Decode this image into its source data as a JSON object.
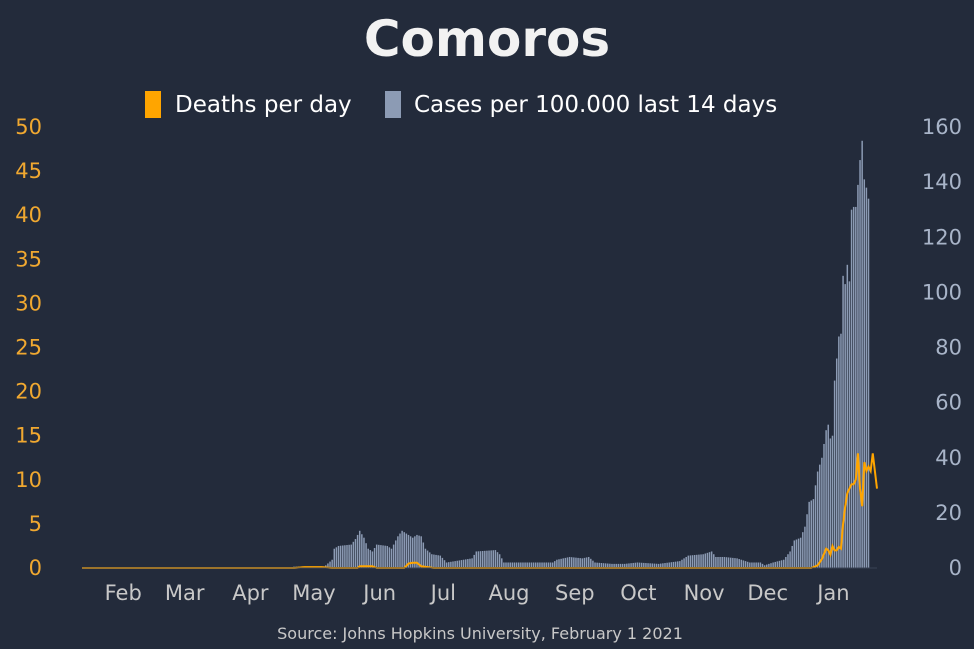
{
  "chart_data": {
    "type": "bar",
    "title": "Comoros",
    "source": "Source: Johns Hopkins University, February 1 2021",
    "legend_position": "top",
    "colors": {
      "background": "#232b3b",
      "deaths": "#ffa500",
      "cases": "#8c9bb4",
      "left_axis": "#f0a830",
      "right_axis": "#a8b4c8",
      "x_axis": "#c8c8c8"
    },
    "x_range": [
      "2020-01-22",
      "2021-01-31"
    ],
    "x_ticks": [
      {
        "label": "Feb",
        "date": "2020-02-01"
      },
      {
        "label": "Mar",
        "date": "2020-03-01"
      },
      {
        "label": "Apr",
        "date": "2020-04-01"
      },
      {
        "label": "May",
        "date": "2020-05-01"
      },
      {
        "label": "Jun",
        "date": "2020-06-01"
      },
      {
        "label": "Jul",
        "date": "2020-07-01"
      },
      {
        "label": "Aug",
        "date": "2020-08-01"
      },
      {
        "label": "Sep",
        "date": "2020-09-01"
      },
      {
        "label": "Oct",
        "date": "2020-10-01"
      },
      {
        "label": "Nov",
        "date": "2020-11-01"
      },
      {
        "label": "Dec",
        "date": "2020-12-01"
      },
      {
        "label": "Jan",
        "date": "2021-01-01"
      }
    ],
    "y_left": {
      "ticks": [
        0,
        5,
        10,
        15,
        20,
        25,
        30,
        35,
        40,
        45,
        50
      ],
      "range": [
        0,
        50
      ]
    },
    "y_right": {
      "ticks": [
        0,
        20,
        40,
        60,
        80,
        100,
        120,
        140,
        160
      ],
      "range": [
        0,
        160
      ]
    },
    "series": [
      {
        "name": "Deaths per day",
        "kind": "line",
        "axis": "left",
        "points": [
          [
            "2020-01-22",
            0
          ],
          [
            "2020-05-01",
            0
          ],
          [
            "2020-05-06",
            0.1
          ],
          [
            "2020-05-14",
            0.1
          ],
          [
            "2020-05-19",
            0
          ],
          [
            "2020-05-31",
            0
          ],
          [
            "2020-06-01",
            0.2
          ],
          [
            "2020-06-07",
            0.2
          ],
          [
            "2020-06-09",
            0
          ],
          [
            "2020-06-22",
            0
          ],
          [
            "2020-06-24",
            0.5
          ],
          [
            "2020-06-26",
            0.6
          ],
          [
            "2020-06-28",
            0.6
          ],
          [
            "2020-06-30",
            0.2
          ],
          [
            "2020-07-03",
            0.1
          ],
          [
            "2020-07-06",
            0
          ],
          [
            "2020-12-31",
            0
          ],
          [
            "2021-01-03",
            0.3
          ],
          [
            "2021-01-05",
            1.0
          ],
          [
            "2021-01-07",
            2.2
          ],
          [
            "2021-01-08",
            2.0
          ],
          [
            "2021-01-09",
            1.5
          ],
          [
            "2021-01-10",
            2.5
          ],
          [
            "2021-01-11",
            2.0
          ],
          [
            "2021-01-12",
            2.0
          ],
          [
            "2021-01-13",
            2.4
          ],
          [
            "2021-01-14",
            2.2
          ],
          [
            "2021-01-15",
            5.0
          ],
          [
            "2021-01-16",
            7.0
          ],
          [
            "2021-01-17",
            8.5
          ],
          [
            "2021-01-18",
            9.0
          ],
          [
            "2021-01-19",
            9.5
          ],
          [
            "2021-01-20",
            9.5
          ],
          [
            "2021-01-21",
            10.0
          ],
          [
            "2021-01-22",
            13.0
          ],
          [
            "2021-01-23",
            9.0
          ],
          [
            "2021-01-24",
            7.0
          ],
          [
            "2021-01-25",
            12.0
          ],
          [
            "2021-01-26",
            11.0
          ],
          [
            "2021-01-27",
            11.5
          ],
          [
            "2021-01-28",
            11.0
          ],
          [
            "2021-01-29",
            13.0
          ],
          [
            "2021-01-30",
            11.0
          ],
          [
            "2021-01-31",
            9.0
          ]
        ]
      },
      {
        "name": "Cases per 100.000 last 14 days",
        "kind": "bar",
        "axis": "right",
        "points": [
          [
            "2020-01-22",
            0
          ],
          [
            "2020-04-30",
            0
          ],
          [
            "2020-05-01",
            0.5
          ],
          [
            "2020-05-10",
            0.5
          ],
          [
            "2020-05-15",
            0.3
          ],
          [
            "2020-05-19",
            3
          ],
          [
            "2020-05-20",
            7
          ],
          [
            "2020-05-22",
            8
          ],
          [
            "2020-05-28",
            8.5
          ],
          [
            "2020-05-30",
            10.5
          ],
          [
            "2020-06-01",
            13.5
          ],
          [
            "2020-06-03",
            11
          ],
          [
            "2020-06-05",
            7
          ],
          [
            "2020-06-07",
            6
          ],
          [
            "2020-06-09",
            8.5
          ],
          [
            "2020-06-14",
            8
          ],
          [
            "2020-06-16",
            7
          ],
          [
            "2020-06-19",
            11.5
          ],
          [
            "2020-06-21",
            13.5
          ],
          [
            "2020-06-23",
            12.5
          ],
          [
            "2020-06-26",
            11
          ],
          [
            "2020-06-28",
            12
          ],
          [
            "2020-06-30",
            11.5
          ],
          [
            "2020-07-02",
            7
          ],
          [
            "2020-07-05",
            5
          ],
          [
            "2020-07-09",
            4.5
          ],
          [
            "2020-07-12",
            2
          ],
          [
            "2020-07-16",
            2.5
          ],
          [
            "2020-07-24",
            3.5
          ],
          [
            "2020-07-26",
            6
          ],
          [
            "2020-08-04",
            6.5
          ],
          [
            "2020-08-06",
            5
          ],
          [
            "2020-08-08",
            2
          ],
          [
            "2020-08-20",
            2
          ],
          [
            "2020-08-31",
            2
          ],
          [
            "2020-09-02",
            3
          ],
          [
            "2020-09-08",
            4
          ],
          [
            "2020-09-14",
            3.5
          ],
          [
            "2020-09-17",
            4
          ],
          [
            "2020-09-20",
            2
          ],
          [
            "2020-09-28",
            1.5
          ],
          [
            "2020-10-04",
            1.5
          ],
          [
            "2020-10-10",
            2
          ],
          [
            "2020-10-20",
            1.5
          ],
          [
            "2020-10-30",
            2.5
          ],
          [
            "2020-11-03",
            4.5
          ],
          [
            "2020-11-10",
            5
          ],
          [
            "2020-11-14",
            6
          ],
          [
            "2020-11-16",
            4
          ],
          [
            "2020-11-20",
            4
          ],
          [
            "2020-11-26",
            3.5
          ],
          [
            "2020-12-02",
            2
          ],
          [
            "2020-12-07",
            2
          ],
          [
            "2020-12-09",
            1
          ],
          [
            "2020-12-13",
            2
          ],
          [
            "2020-12-18",
            3
          ],
          [
            "2020-12-21",
            6
          ],
          [
            "2020-12-23",
            10
          ],
          [
            "2020-12-26",
            11
          ],
          [
            "2020-12-28",
            15
          ],
          [
            "2020-12-30",
            24
          ],
          [
            "2021-01-01",
            25
          ],
          [
            "2021-01-03",
            35
          ],
          [
            "2021-01-05",
            40
          ],
          [
            "2021-01-07",
            50
          ],
          [
            "2021-01-08",
            52
          ],
          [
            "2021-01-09",
            47
          ],
          [
            "2021-01-10",
            48
          ],
          [
            "2021-01-11",
            68
          ],
          [
            "2021-01-12",
            76
          ],
          [
            "2021-01-13",
            84
          ],
          [
            "2021-01-14",
            85
          ],
          [
            "2021-01-15",
            106
          ],
          [
            "2021-01-16",
            103
          ],
          [
            "2021-01-17",
            110
          ],
          [
            "2021-01-18",
            104
          ],
          [
            "2021-01-19",
            130
          ],
          [
            "2021-01-20",
            131
          ],
          [
            "2021-01-21",
            131
          ],
          [
            "2021-01-22",
            139
          ],
          [
            "2021-01-23",
            148
          ],
          [
            "2021-01-24",
            155
          ],
          [
            "2021-01-25",
            141
          ],
          [
            "2021-01-26",
            138
          ],
          [
            "2021-01-27",
            134
          ]
        ]
      }
    ]
  }
}
